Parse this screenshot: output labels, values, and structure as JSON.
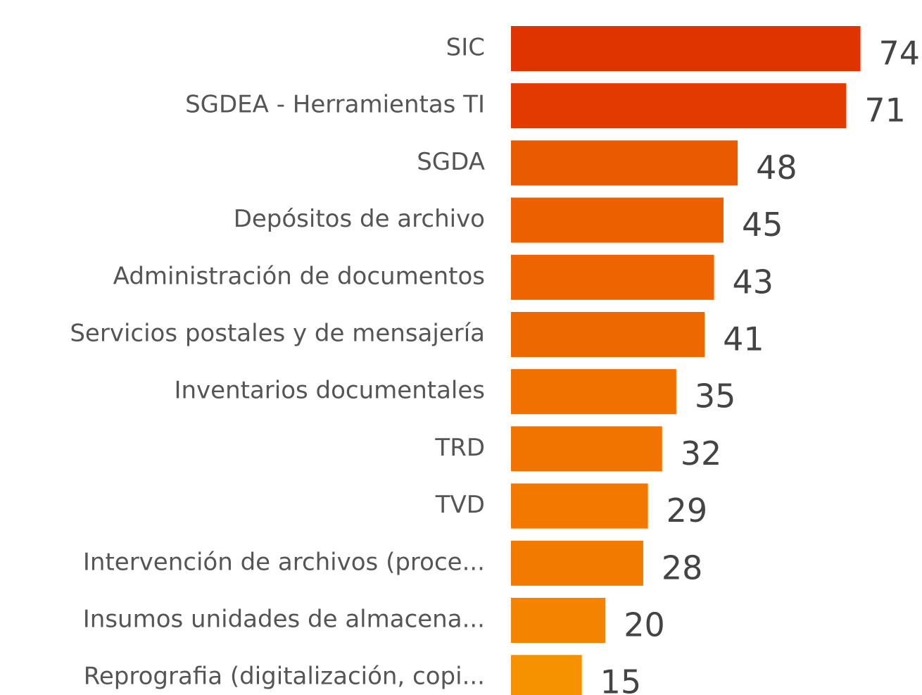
{
  "chart_data": {
    "type": "bar",
    "orientation": "horizontal",
    "categories": [
      "SIC",
      "SGDEA - Herramientas TI",
      "SGDA",
      "Depósitos de archivo",
      "Administración de documentos",
      "Servicios postales y de mensajería",
      "Inventarios documentales",
      "TRD",
      "TVD",
      "Intervención de archivos (proce...",
      "Insumos unidades de almacena...",
      "Reprografia (digitalización, copi..."
    ],
    "values": [
      74,
      71,
      48,
      45,
      43,
      41,
      35,
      32,
      29,
      28,
      20,
      15
    ],
    "colors": [
      "#e03400",
      "#e23a00",
      "#ea5a00",
      "#ec6000",
      "#ed6400",
      "#ee6800",
      "#f07000",
      "#f17400",
      "#f27800",
      "#f27a00",
      "#f48400",
      "#f69200"
    ]
  }
}
